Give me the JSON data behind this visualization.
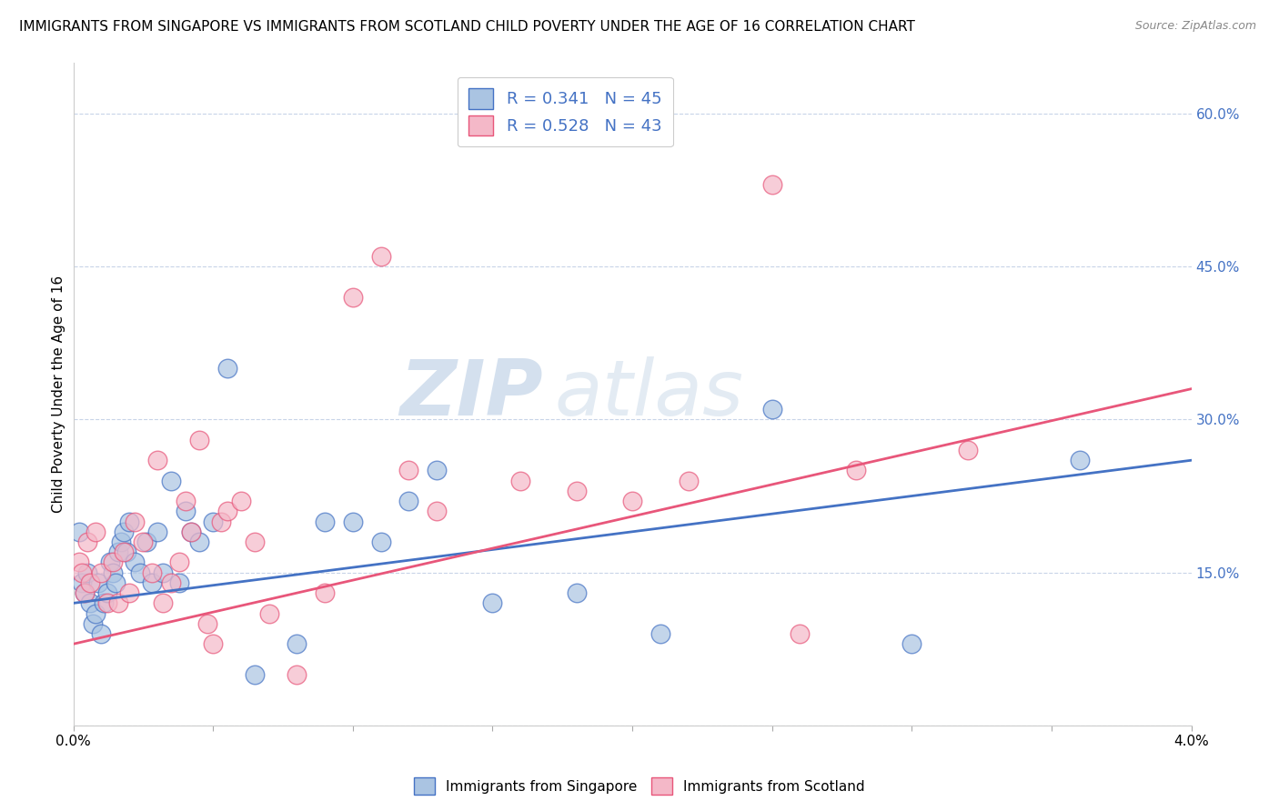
{
  "title": "IMMIGRANTS FROM SINGAPORE VS IMMIGRANTS FROM SCOTLAND CHILD POVERTY UNDER THE AGE OF 16 CORRELATION CHART",
  "source": "Source: ZipAtlas.com",
  "ylabel": "Child Poverty Under the Age of 16",
  "xlim": [
    0.0,
    4.0
  ],
  "ylim": [
    0.0,
    65.0
  ],
  "yticks_right": [
    0,
    15.0,
    30.0,
    45.0,
    60.0
  ],
  "ytick_labels_right": [
    "",
    "15.0%",
    "30.0%",
    "45.0%",
    "60.0%"
  ],
  "xticks": [
    0.0,
    0.5,
    1.0,
    1.5,
    2.0,
    2.5,
    3.0,
    3.5,
    4.0
  ],
  "series": [
    {
      "label": "Immigrants from Singapore",
      "color_scatter": "#aac4e2",
      "color_line": "#4472c4",
      "R": 0.341,
      "N": 45,
      "x": [
        0.02,
        0.03,
        0.04,
        0.05,
        0.06,
        0.07,
        0.08,
        0.09,
        0.1,
        0.11,
        0.12,
        0.13,
        0.14,
        0.15,
        0.16,
        0.17,
        0.18,
        0.19,
        0.2,
        0.22,
        0.24,
        0.26,
        0.28,
        0.3,
        0.32,
        0.35,
        0.38,
        0.4,
        0.42,
        0.45,
        0.5,
        0.55,
        0.65,
        0.8,
        0.9,
        1.0,
        1.1,
        1.2,
        1.3,
        1.5,
        1.8,
        2.1,
        2.5,
        3.0,
        3.6
      ],
      "y": [
        19.0,
        14.0,
        13.0,
        15.0,
        12.0,
        10.0,
        11.0,
        14.0,
        9.0,
        12.0,
        13.0,
        16.0,
        15.0,
        14.0,
        17.0,
        18.0,
        19.0,
        17.0,
        20.0,
        16.0,
        15.0,
        18.0,
        14.0,
        19.0,
        15.0,
        24.0,
        14.0,
        21.0,
        19.0,
        18.0,
        20.0,
        35.0,
        5.0,
        8.0,
        20.0,
        20.0,
        18.0,
        22.0,
        25.0,
        12.0,
        13.0,
        9.0,
        31.0,
        8.0,
        26.0
      ],
      "line_x": [
        0.0,
        4.0
      ],
      "line_y": [
        12.0,
        26.0
      ]
    },
    {
      "label": "Immigrants from Scotland",
      "color_scatter": "#f4b8c8",
      "color_line": "#e8567a",
      "R": 0.528,
      "N": 43,
      "x": [
        0.02,
        0.03,
        0.04,
        0.05,
        0.06,
        0.08,
        0.1,
        0.12,
        0.14,
        0.16,
        0.18,
        0.2,
        0.22,
        0.25,
        0.28,
        0.3,
        0.32,
        0.35,
        0.38,
        0.4,
        0.42,
        0.45,
        0.48,
        0.5,
        0.53,
        0.55,
        0.6,
        0.65,
        0.7,
        0.8,
        0.9,
        1.0,
        1.1,
        1.2,
        1.3,
        1.6,
        1.8,
        2.0,
        2.2,
        2.5,
        2.6,
        2.8,
        3.2
      ],
      "y": [
        16.0,
        15.0,
        13.0,
        18.0,
        14.0,
        19.0,
        15.0,
        12.0,
        16.0,
        12.0,
        17.0,
        13.0,
        20.0,
        18.0,
        15.0,
        26.0,
        12.0,
        14.0,
        16.0,
        22.0,
        19.0,
        28.0,
        10.0,
        8.0,
        20.0,
        21.0,
        22.0,
        18.0,
        11.0,
        5.0,
        13.0,
        42.0,
        46.0,
        25.0,
        21.0,
        24.0,
        23.0,
        22.0,
        24.0,
        53.0,
        9.0,
        25.0,
        27.0
      ],
      "line_x": [
        0.0,
        4.0
      ],
      "line_y": [
        8.0,
        33.0
      ]
    }
  ],
  "legend_text_color": "#4472c4",
  "title_fontsize": 11,
  "watermark_zip": "ZIP",
  "watermark_atlas": "atlas",
  "background_color": "#ffffff",
  "grid_color": "#c8d4e8",
  "axis_label_color": "#4472c4",
  "scatter_size": 220
}
